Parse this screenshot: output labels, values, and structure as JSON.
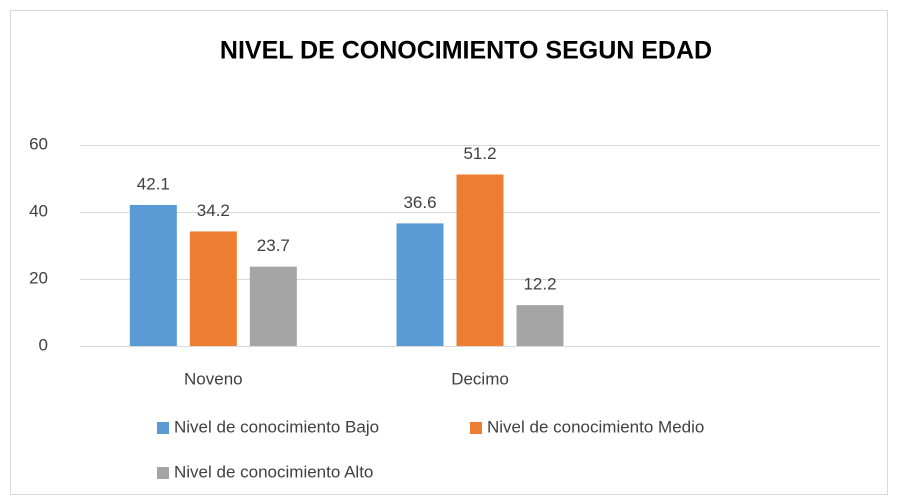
{
  "chart_data": {
    "type": "bar",
    "title": "NIVEL DE CONOCIMIENTO SEGUN EDAD",
    "categories": [
      "Noveno",
      "Decimo",
      null
    ],
    "series": [
      {
        "name": "Nivel de conocimiento Bajo",
        "color": "#5b9bd5",
        "values": [
          42.1,
          36.6,
          null
        ]
      },
      {
        "name": "Nivel de conocimiento Medio",
        "color": "#ed7d31",
        "values": [
          34.2,
          51.2,
          null
        ]
      },
      {
        "name": "Nivel de conocimiento Alto",
        "color": "#a5a5a5",
        "values": [
          23.7,
          12.2,
          null
        ]
      }
    ],
    "ylim": [
      0,
      60
    ],
    "yticks": [
      0,
      20,
      40,
      60
    ],
    "grid": true,
    "legend": "bottom"
  }
}
